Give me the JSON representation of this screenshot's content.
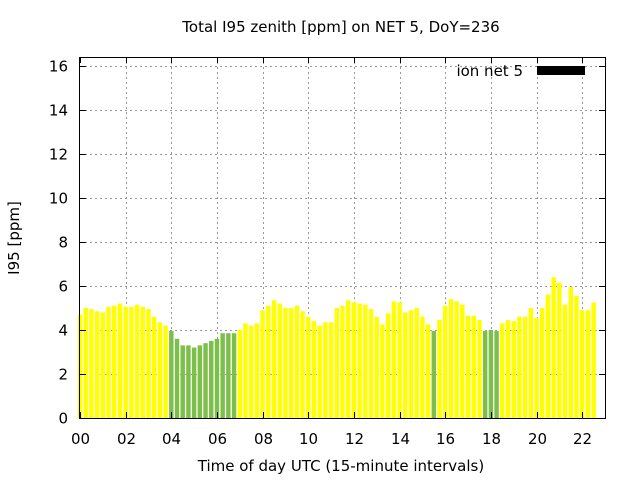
{
  "chart_data": {
    "type": "bar",
    "title": "Total I95 zenith [ppm] on NET 5, DoY=236",
    "xlabel": "Time of day UTC (15-minute intervals)",
    "ylabel": "I95 [ppm]",
    "xlim": [
      0,
      23
    ],
    "ylim": [
      0,
      16.4
    ],
    "grid": true,
    "legend_position": "top-right",
    "x_ticks": [
      "00",
      "02",
      "04",
      "06",
      "08",
      "10",
      "12",
      "14",
      "16",
      "18",
      "20",
      "22"
    ],
    "y_ticks": [
      "0",
      "2",
      "4",
      "6",
      "8",
      "10",
      "12",
      "14",
      "16"
    ],
    "x_tick_hours": [
      0,
      2,
      4,
      6,
      8,
      10,
      12,
      14,
      16,
      18,
      20,
      22
    ],
    "y_tick_values": [
      0,
      2,
      4,
      6,
      8,
      10,
      12,
      14,
      16
    ],
    "bar_interval_hours": 0.25,
    "colors": {
      "high": "#ffff00",
      "low": "#7cbf4a",
      "legend": "#000000",
      "grid": "#999999"
    },
    "series": [
      {
        "name": "ion net 5",
        "values": [
          4.7,
          5.0,
          4.95,
          4.85,
          4.8,
          5.05,
          5.1,
          5.2,
          5.05,
          5.05,
          5.15,
          5.05,
          4.95,
          4.6,
          4.35,
          4.2,
          3.95,
          3.6,
          3.3,
          3.3,
          3.2,
          3.3,
          3.4,
          3.5,
          3.6,
          3.85,
          3.85,
          3.85,
          4.0,
          4.3,
          4.2,
          4.3,
          4.9,
          5.1,
          5.35,
          5.2,
          5.0,
          5.0,
          5.1,
          4.85,
          4.6,
          4.4,
          4.2,
          4.35,
          4.35,
          5.0,
          5.1,
          5.35,
          5.25,
          5.2,
          5.15,
          4.95,
          4.6,
          4.25,
          4.75,
          5.3,
          5.25,
          4.8,
          4.9,
          5.0,
          4.6,
          4.25,
          3.95,
          4.45,
          5.1,
          5.4,
          5.3,
          5.15,
          4.65,
          4.65,
          4.45,
          3.95,
          4.0,
          3.95,
          4.3,
          4.45,
          4.4,
          4.6,
          4.6,
          5.0,
          4.55,
          5.0,
          5.6,
          6.4,
          6.15,
          5.15,
          5.95,
          5.55,
          4.9,
          4.9,
          5.25
        ],
        "low_flags": [
          0,
          0,
          0,
          0,
          0,
          0,
          0,
          0,
          0,
          0,
          0,
          0,
          0,
          0,
          0,
          0,
          1,
          1,
          1,
          1,
          1,
          1,
          1,
          1,
          1,
          1,
          1,
          1,
          0,
          0,
          0,
          0,
          0,
          0,
          0,
          0,
          0,
          0,
          0,
          0,
          0,
          0,
          0,
          0,
          0,
          0,
          0,
          0,
          0,
          0,
          0,
          0,
          0,
          0,
          0,
          0,
          0,
          0,
          0,
          0,
          0,
          0,
          1,
          0,
          0,
          0,
          0,
          0,
          0,
          0,
          0,
          1,
          1,
          1,
          0,
          0,
          0,
          0,
          0,
          0,
          0,
          0,
          0,
          0,
          0,
          0,
          0,
          0,
          0,
          0,
          0
        ]
      }
    ]
  }
}
